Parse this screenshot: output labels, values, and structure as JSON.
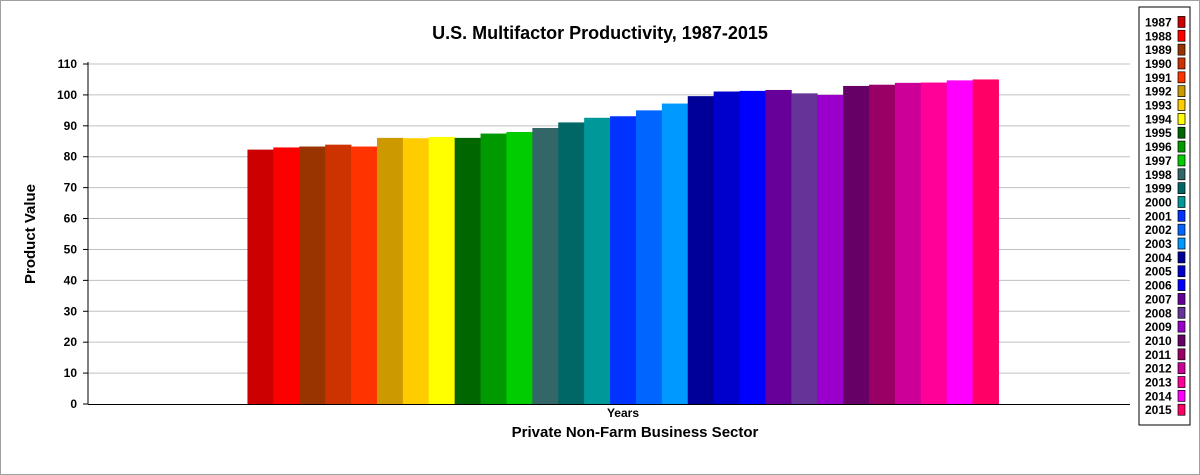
{
  "chart_data": {
    "type": "bar",
    "title": "U.S. Multifactor Productivity, 1987-2015",
    "xlabel": "Private Non-Farm Business Sector",
    "ylabel": "Product Value",
    "categories": [
      "Years"
    ],
    "ylim": [
      0,
      110
    ],
    "yticks": [
      0,
      10,
      20,
      30,
      40,
      50,
      60,
      70,
      80,
      90,
      100,
      110
    ],
    "grid": true,
    "legend_position": "right",
    "series": [
      {
        "name": "1987",
        "values": [
          82.3
        ],
        "color": "#cc0000"
      },
      {
        "name": "1988",
        "values": [
          83.0
        ],
        "color": "#ff0000"
      },
      {
        "name": "1989",
        "values": [
          83.3
        ],
        "color": "#993300"
      },
      {
        "name": "1990",
        "values": [
          83.9
        ],
        "color": "#cc3300"
      },
      {
        "name": "1991",
        "values": [
          83.3
        ],
        "color": "#ff3300"
      },
      {
        "name": "1992",
        "values": [
          86.1
        ],
        "color": "#cc9900"
      },
      {
        "name": "1993",
        "values": [
          86.0
        ],
        "color": "#ffcc00"
      },
      {
        "name": "1994",
        "values": [
          86.4
        ],
        "color": "#ffff00"
      },
      {
        "name": "1995",
        "values": [
          86.1
        ],
        "color": "#006600"
      },
      {
        "name": "1996",
        "values": [
          87.5
        ],
        "color": "#009900"
      },
      {
        "name": "1997",
        "values": [
          88.0
        ],
        "color": "#00cc00"
      },
      {
        "name": "1998",
        "values": [
          89.3
        ],
        "color": "#336666"
      },
      {
        "name": "1999",
        "values": [
          91.1
        ],
        "color": "#006666"
      },
      {
        "name": "2000",
        "values": [
          92.6
        ],
        "color": "#009999"
      },
      {
        "name": "2001",
        "values": [
          93.1
        ],
        "color": "#0033ff"
      },
      {
        "name": "2002",
        "values": [
          95.0
        ],
        "color": "#0066ff"
      },
      {
        "name": "2003",
        "values": [
          97.2
        ],
        "color": "#0099ff"
      },
      {
        "name": "2004",
        "values": [
          99.6
        ],
        "color": "#000099"
      },
      {
        "name": "2005",
        "values": [
          101.1
        ],
        "color": "#0000cc"
      },
      {
        "name": "2006",
        "values": [
          101.3
        ],
        "color": "#0000ff"
      },
      {
        "name": "2007",
        "values": [
          101.6
        ],
        "color": "#660099"
      },
      {
        "name": "2008",
        "values": [
          100.5
        ],
        "color": "#663399"
      },
      {
        "name": "2009",
        "values": [
          100.0
        ],
        "color": "#9900cc"
      },
      {
        "name": "2010",
        "values": [
          102.9
        ],
        "color": "#660066"
      },
      {
        "name": "2011",
        "values": [
          103.3
        ],
        "color": "#990066"
      },
      {
        "name": "2012",
        "values": [
          103.9
        ],
        "color": "#cc0099"
      },
      {
        "name": "2013",
        "values": [
          104.0
        ],
        "color": "#ff0099"
      },
      {
        "name": "2014",
        "values": [
          104.7
        ],
        "color": "#ff00ff"
      },
      {
        "name": "2015",
        "values": [
          105.0
        ],
        "color": "#ff0066"
      }
    ]
  }
}
